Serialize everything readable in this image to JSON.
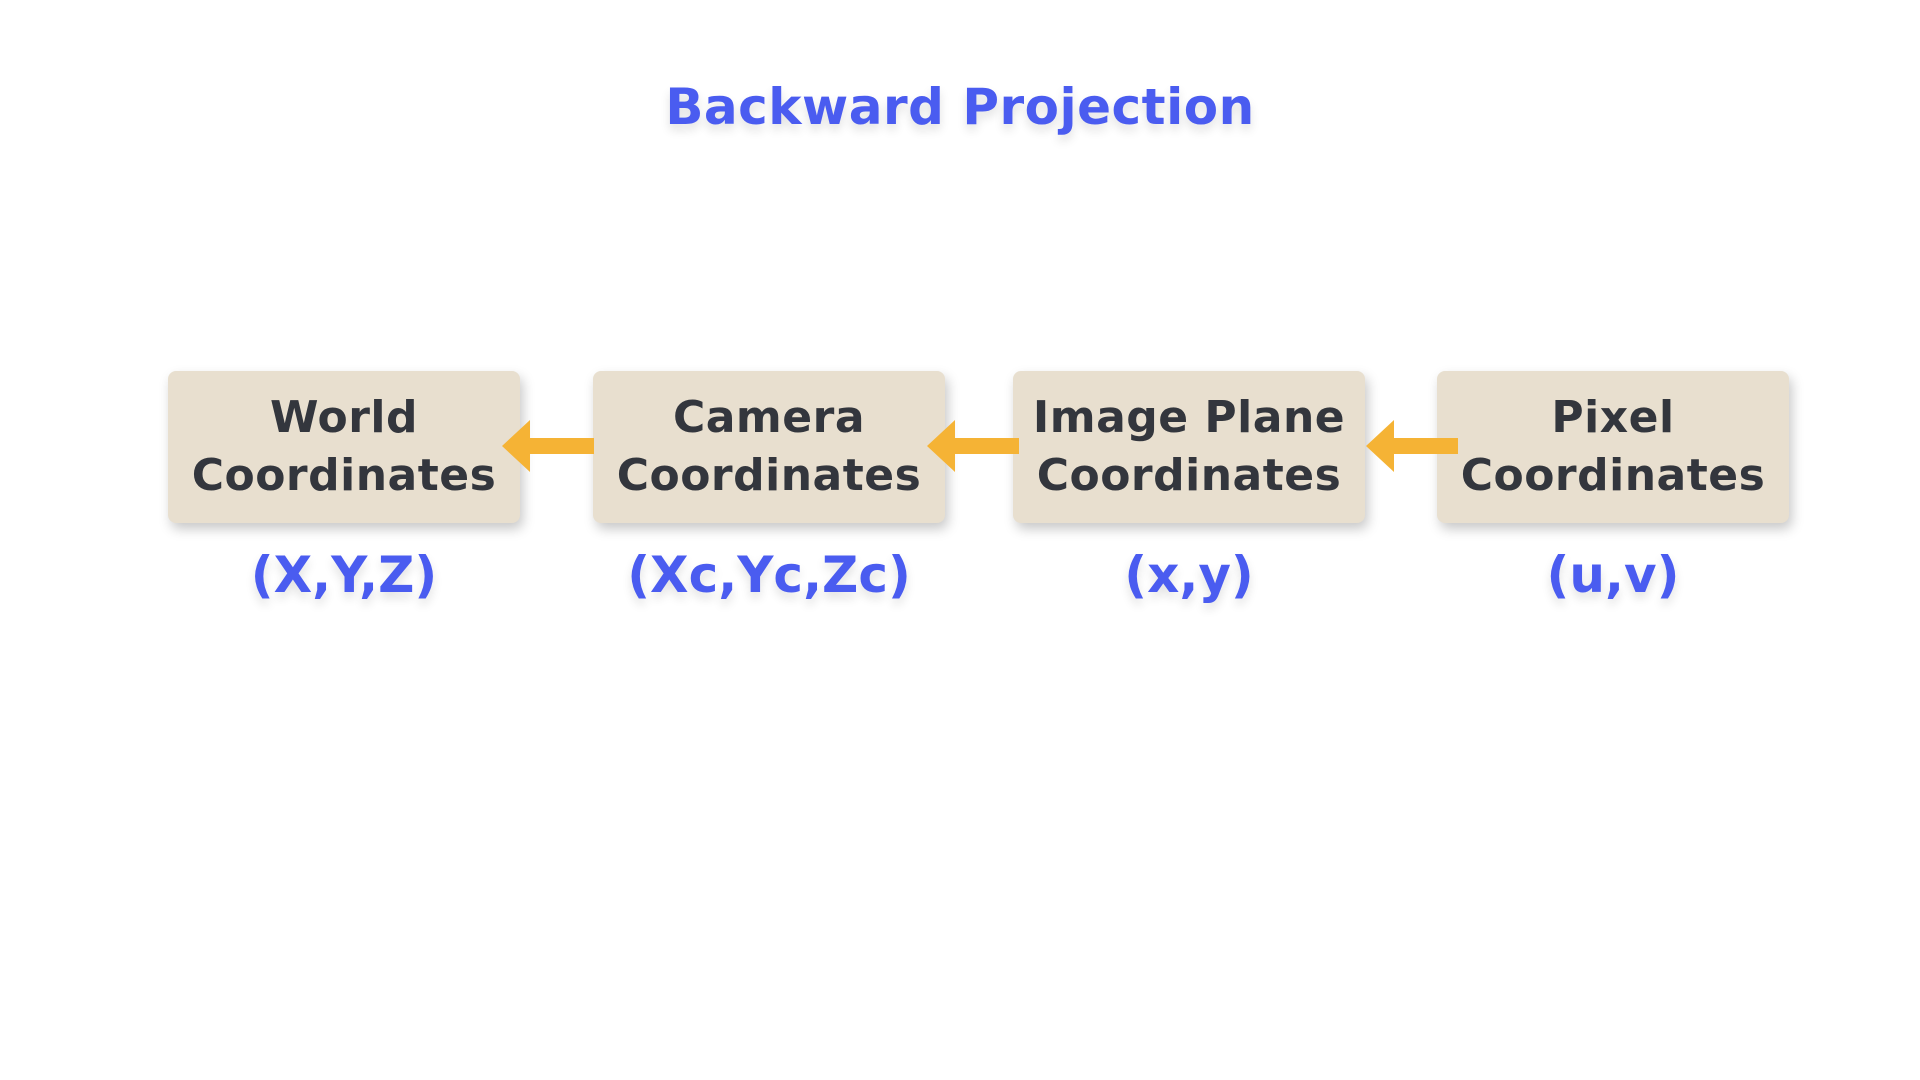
{
  "title": "Backward Projection",
  "nodes": [
    {
      "line1": "World",
      "line2": "Coordinates",
      "coords": "(X,Y,Z)"
    },
    {
      "line1": "Camera",
      "line2": "Coordinates",
      "coords": "(Xc,Yc,Zc)"
    },
    {
      "line1": "Image Plane",
      "line2": "Coordinates",
      "coords": "(x,y)"
    },
    {
      "line1": "Pixel",
      "line2": "Coordinates",
      "coords": "(u,v)"
    }
  ],
  "colors": {
    "accent": "#4a5cf0",
    "box_fill": "#e8dfcf",
    "box_text": "#33363d",
    "arrow": "#f5b335"
  },
  "arrows": [
    {
      "from": "Camera Coordinates",
      "to": "World Coordinates",
      "icon": "arrow-left-icon"
    },
    {
      "from": "Image Plane Coordinates",
      "to": "Camera Coordinates",
      "icon": "arrow-left-icon"
    },
    {
      "from": "Pixel Coordinates",
      "to": "Image Plane Coordinates",
      "icon": "arrow-left-icon"
    }
  ]
}
